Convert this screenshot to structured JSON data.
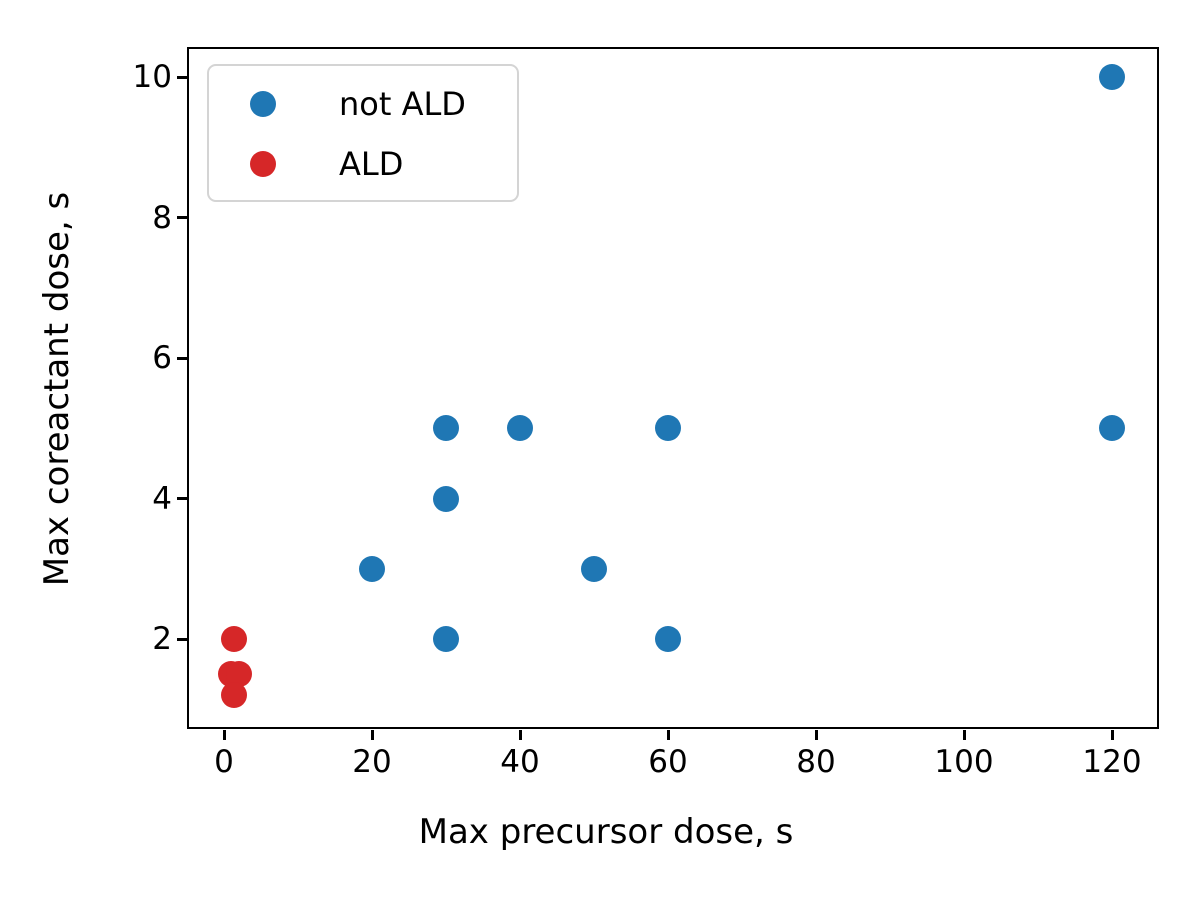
{
  "chart_data": {
    "type": "scatter",
    "title": "",
    "xlabel": "Max precursor dose, s",
    "ylabel": "Max coreactant dose, s",
    "xlim": [
      -4.73,
      126.08
    ],
    "ylim": [
      0.75,
      10.4
    ],
    "xticks": [
      0,
      20,
      40,
      60,
      80,
      100,
      120
    ],
    "yticks": [
      2,
      4,
      6,
      8,
      10
    ],
    "grid": false,
    "legend_position": "upper left",
    "marker_diameter_px": 26,
    "series": [
      {
        "name": "not ALD",
        "color": "#1f77b4",
        "points": [
          [
            30,
            5
          ],
          [
            40,
            5
          ],
          [
            60,
            5
          ],
          [
            120,
            5
          ],
          [
            30,
            4
          ],
          [
            20,
            3
          ],
          [
            50,
            3
          ],
          [
            30,
            2
          ],
          [
            60,
            2
          ],
          [
            120,
            10
          ]
        ]
      },
      {
        "name": "ALD",
        "color": "#d62728",
        "points": [
          [
            1.4,
            2
          ],
          [
            1,
            1.5
          ],
          [
            2,
            1.5
          ],
          [
            1.3,
            1.2
          ]
        ]
      }
    ]
  },
  "colors": {
    "spine": "#000000",
    "legend_border": "#d4d4d4",
    "background": "#ffffff"
  }
}
